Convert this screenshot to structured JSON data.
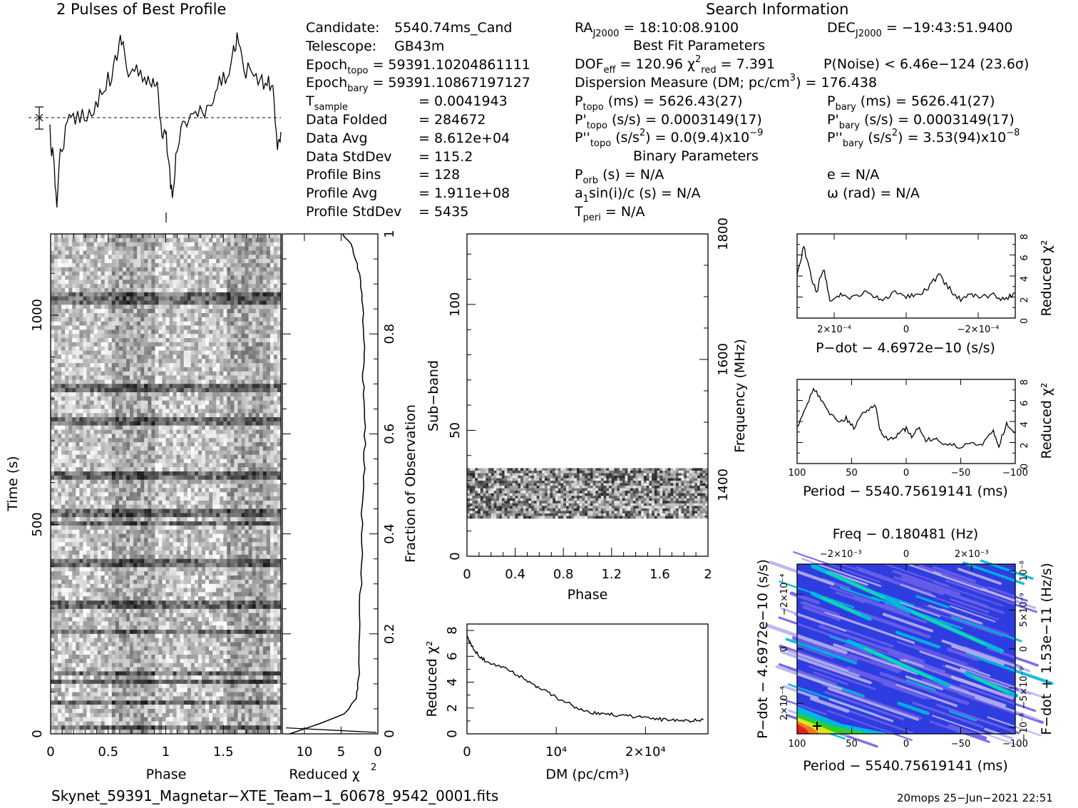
{
  "header": {
    "profile_title": "2 Pulses of Best Profile",
    "search_title": "Search Information",
    "fit_title": "Best Fit Parameters",
    "binary_title": "Binary Parameters"
  },
  "info_left": [
    {
      "label": "Candidate:",
      "sub": "",
      "value": "5540.74ms_Cand"
    },
    {
      "label": "Telescope:",
      "sub": "",
      "value": "GB43m"
    },
    {
      "label": "Epoch",
      "sub": "topo",
      "value": "= 59391.10204861111"
    },
    {
      "label": "Epoch",
      "sub": "bary",
      "value": "= 59391.10867197127"
    },
    {
      "label": "T",
      "sub": "sample",
      "value": "=  0.0041943"
    },
    {
      "label": "Data Folded",
      "sub": "",
      "value": "=  284672"
    },
    {
      "label": "Data Avg",
      "sub": "",
      "value": "=  8.612e+04"
    },
    {
      "label": "Data StdDev",
      "sub": "",
      "value": "=  115.2"
    },
    {
      "label": "Profile Bins",
      "sub": "",
      "value": "=  128"
    },
    {
      "label": "Profile Avg",
      "sub": "",
      "value": "=  1.911e+08"
    },
    {
      "label": "Profile StdDev",
      "sub": "",
      "value": "=  5435"
    }
  ],
  "info_right": {
    "ra": "= 18:10:08.9100",
    "dec": "= −19:43:51.9400",
    "dof": "= 120.96",
    "chi2": "= 7.391",
    "pnoise": "P(Noise) < 6.46e−124   (23.6σ)",
    "dm": "Dispersion Measure (DM; pc/cm",
    "dm_val": ") = 176.438",
    "p_topo": "(ms) =  5626.43(27)",
    "p_bary": "(ms) =  5626.41(27)",
    "pd_topo": "(s/s) =  0.0003149(17)",
    "pd_bary": "(s/s) =  0.0003149(17)",
    "pdd_topo": "(s/s",
    "pdd_topo_val": ") = 0.0(9.4)x10",
    "pdd_topo_exp": "−9",
    "pdd_bary": "(s/s",
    "pdd_bary_val": ") =  3.53(94)x10",
    "pdd_bary_exp": "−8",
    "porb": "(s) = N/A",
    "a1": "a",
    "a1_rest": "sin(i)/c (s) = N/A",
    "tperi": "= N/A",
    "ecc": "e = N/A",
    "omega": "ω (rad) = N/A"
  },
  "footer": {
    "filename": "Skynet_59391_Magnetar−XTE_Team−1_60678_9542_0001.fits",
    "stamp": "20mops 25−Jun−2021 22:51"
  },
  "chart_data": [
    {
      "id": "profile",
      "type": "line",
      "title": "2 Pulses of Best Profile",
      "xlabel": "",
      "ylabel": "",
      "x_range": [
        0,
        2
      ],
      "description_series": "pulse profile, two rotations"
    },
    {
      "id": "time-phase",
      "type": "heatmap",
      "xlabel": "Phase",
      "ylabel": "Time (s)",
      "x_ticks": [
        "0",
        "0.5",
        "1",
        "1.5"
      ],
      "y_ticks": [
        "0",
        "500",
        "1000"
      ],
      "xlim": [
        0,
        2
      ],
      "ylim": [
        0,
        1194
      ]
    },
    {
      "id": "reduced-chi2-vs-fraction",
      "type": "line",
      "xlabel": "Reduced χ²",
      "ylabel": "Fraction of Observation",
      "x_ticks": [
        "10",
        "5",
        "0"
      ],
      "y_ticks": [
        "0",
        "0.2",
        "0.4",
        "0.6",
        "0.8",
        "1"
      ],
      "xlim": [
        13,
        0
      ],
      "ylim": [
        0,
        1
      ],
      "x": [
        12.0,
        8.0,
        4.5,
        3.0,
        2.8,
        2.6,
        2.5,
        2.5,
        2.3,
        2.2,
        2.2,
        2.0,
        1.9,
        1.8,
        1.8,
        1.9,
        2.0,
        1.9,
        2.0,
        2.1,
        2.3,
        2.5,
        3.0,
        3.7,
        4.8
      ],
      "y": [
        0.0,
        0.02,
        0.04,
        0.07,
        0.09,
        0.12,
        0.18,
        0.24,
        0.3,
        0.36,
        0.42,
        0.48,
        0.53,
        0.58,
        0.63,
        0.68,
        0.72,
        0.76,
        0.8,
        0.84,
        0.88,
        0.92,
        0.95,
        0.98,
        1.0
      ]
    },
    {
      "id": "subband-phase",
      "type": "heatmap",
      "xlabel": "Phase",
      "ylabel": "Sub−band",
      "ylabel_right": "Frequency (MHz)",
      "x_ticks": [
        "0",
        "0.4",
        "0.8",
        "1.2",
        "1.6",
        "2"
      ],
      "y_ticks": [
        "0",
        "50",
        "100"
      ],
      "y_ticks_right": [
        "1400",
        "1600",
        "1800"
      ],
      "xlim": [
        0,
        2
      ],
      "ylim": [
        0,
        128
      ],
      "band": [
        15,
        35
      ]
    },
    {
      "id": "dm-chi2",
      "type": "line",
      "xlabel": "DM (pc/cm³)",
      "ylabel": "Reduced χ²",
      "x_ticks": [
        "0",
        "10⁴",
        "2×10⁴"
      ],
      "y_ticks": [
        "0",
        "2",
        "4",
        "6",
        "8"
      ],
      "xlim": [
        0,
        27000
      ],
      "ylim": [
        0,
        8.5
      ],
      "x": [
        0,
        500,
        1500,
        2500,
        4000,
        5500,
        7000,
        8500,
        10000,
        11500,
        13000,
        14500,
        16000,
        17500,
        19000,
        20500,
        22000,
        23500,
        25000,
        26500
      ],
      "y": [
        7.6,
        6.8,
        5.9,
        5.5,
        5.2,
        4.6,
        4.0,
        3.4,
        2.8,
        2.3,
        1.8,
        1.6,
        1.5,
        1.4,
        1.3,
        1.2,
        1.1,
        1.0,
        1.0,
        1.1
      ]
    },
    {
      "id": "pdot-chi2",
      "type": "line",
      "xlabel": "P−dot − 4.6972e−10 (s/s)",
      "ylabel": "Reduced χ²",
      "x_ticks": [
        "2×10⁻⁴",
        "0",
        "−2×10⁻⁴"
      ],
      "y_ticks": [
        "0",
        "2",
        "4",
        "6",
        "8"
      ],
      "ylim": [
        0,
        8
      ],
      "x": [
        0,
        0.03,
        0.06,
        0.09,
        0.12,
        0.15,
        0.2,
        0.25,
        0.3,
        0.35,
        0.4,
        0.45,
        0.5,
        0.55,
        0.6,
        0.65,
        0.7,
        0.75,
        0.8,
        0.85,
        0.9,
        0.95,
        1.0
      ],
      "y": [
        4.0,
        6.8,
        4.2,
        2.5,
        4.8,
        1.8,
        2.3,
        1.9,
        2.4,
        2.2,
        1.7,
        2.5,
        2.1,
        2.2,
        2.9,
        4.1,
        2.8,
        1.7,
        2.3,
        2.0,
        2.2,
        1.8,
        2.4
      ]
    },
    {
      "id": "period-chi2",
      "type": "line",
      "xlabel": "Period − 5540.75619141 (ms)",
      "ylabel": "Reduced χ²",
      "x_ticks": [
        "100",
        "50",
        "0",
        "−50",
        "−100"
      ],
      "y_ticks": [
        "0",
        "2",
        "4",
        "6",
        "8"
      ],
      "xlim": [
        100,
        -100
      ],
      "ylim": [
        0,
        8
      ],
      "x": [
        100,
        92,
        85,
        78,
        70,
        62,
        55,
        48,
        40,
        33,
        28,
        24,
        20,
        12,
        5,
        0,
        -5,
        -12,
        -18,
        -25,
        -32,
        -40,
        -50,
        -60,
        -70,
        -80,
        -85,
        -92,
        -100
      ],
      "y": [
        3.5,
        5.3,
        7.2,
        6.0,
        4.8,
        3.9,
        4.3,
        3.4,
        4.7,
        5.3,
        5.5,
        3.2,
        2.4,
        2.3,
        3.0,
        3.3,
        2.6,
        3.4,
        2.2,
        2.4,
        2.0,
        1.8,
        1.6,
        1.8,
        1.9,
        3.1,
        1.7,
        3.8,
        2.9
      ]
    },
    {
      "id": "period-pdot-plane",
      "type": "heatmap",
      "title": "Freq − 0.180481 (Hz)",
      "xlabel": "Period − 5540.75619141 (ms)",
      "ylabel": "P−dot − 4.6972e−10 (s/s)",
      "ylabel_right": "F−dot + 1.53e−11 (Hz/s)",
      "x_ticks": [
        "100",
        "50",
        "0",
        "−50",
        "−100"
      ],
      "x_ticks_top": [
        "−2×10⁻³",
        "0",
        "2×10⁻³"
      ],
      "y_ticks": [
        "2×10⁻⁴",
        "0",
        "−2×10⁻⁴"
      ],
      "y_ticks_right": [
        "−10⁻⁸",
        "−5×10⁻⁹",
        "0",
        "5×10⁻⁹",
        "10⁻⁸"
      ],
      "colors": [
        "#2e3de0",
        "#6a5fe8",
        "#b8b0f0",
        "#00b7e0",
        "#19d9a0",
        "#2ccf2c",
        "#e0e020",
        "#f07820",
        "#e02020"
      ]
    }
  ]
}
